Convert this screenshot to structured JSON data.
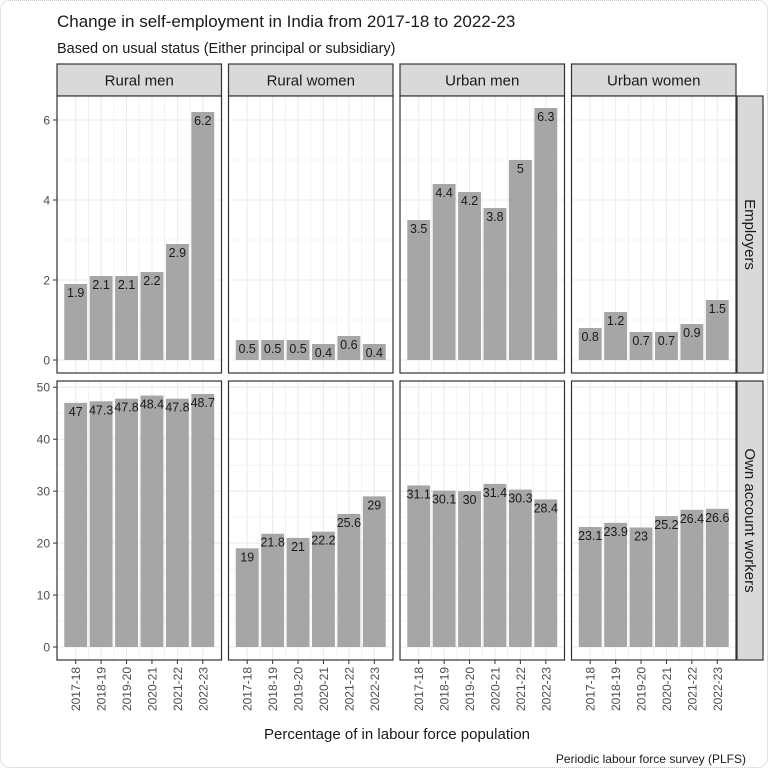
{
  "chart_data": {
    "type": "bar",
    "title": "Change in self-employment in India from 2017-18 to 2022-23",
    "subtitle": "Based on usual status (Either principal or subsidiary)",
    "xlabel": "Percentage of in labour force population",
    "ylabel": "",
    "caption": "Periodic labour force survey (PLFS)",
    "categories": [
      "2017-18",
      "2018-19",
      "2019-20",
      "2020-21",
      "2021-22",
      "2022-23"
    ],
    "columns": [
      "Rural men",
      "Rural women",
      "Urban men",
      "Urban women"
    ],
    "rows": [
      {
        "name": "Employers",
        "ylim": [
          0,
          6.6
        ],
        "yticks": [
          0,
          2,
          4,
          6
        ],
        "series": [
          {
            "name": "Rural men",
            "values": [
              1.9,
              2.1,
              2.1,
              2.2,
              2.9,
              6.2
            ]
          },
          {
            "name": "Rural women",
            "values": [
              0.5,
              0.5,
              0.5,
              0.4,
              0.6,
              0.4
            ]
          },
          {
            "name": "Urban men",
            "values": [
              3.5,
              4.4,
              4.2,
              3.8,
              5,
              6.3
            ]
          },
          {
            "name": "Urban women",
            "values": [
              0.8,
              1.2,
              0.7,
              0.7,
              0.9,
              1.5
            ]
          }
        ]
      },
      {
        "name": "Own account workers",
        "ylim": [
          0,
          51.2
        ],
        "yticks": [
          0,
          10,
          20,
          30,
          40,
          50
        ],
        "series": [
          {
            "name": "Rural men",
            "values": [
              47,
              47.3,
              47.8,
              48.4,
              47.8,
              48.7
            ]
          },
          {
            "name": "Rural women",
            "values": [
              19,
              21.8,
              21,
              22.2,
              25.6,
              29
            ]
          },
          {
            "name": "Urban men",
            "values": [
              31.1,
              30.1,
              30,
              31.4,
              30.3,
              28.4
            ]
          },
          {
            "name": "Urban women",
            "values": [
              23.1,
              23.9,
              23,
              25.2,
              26.4,
              26.6
            ]
          }
        ]
      }
    ],
    "grid": true,
    "legend": "none",
    "colors": {
      "bar": "#a6a6a6",
      "strip": "#d9d9d9",
      "panel_border": "#333333",
      "grid": "#ebebeb"
    }
  }
}
